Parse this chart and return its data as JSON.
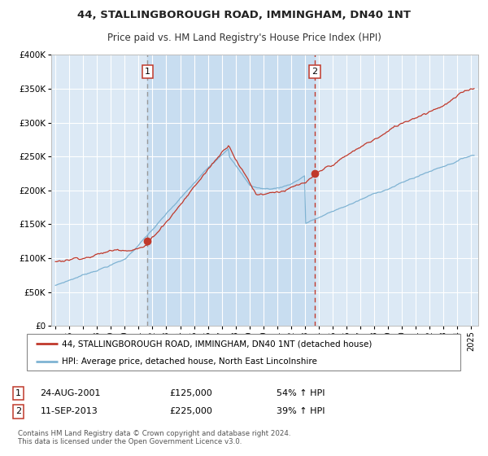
{
  "title1": "44, STALLINGBOROUGH ROAD, IMMINGHAM, DN40 1NT",
  "title2": "Price paid vs. HM Land Registry's House Price Index (HPI)",
  "legend_line1": "44, STALLINGBOROUGH ROAD, IMMINGHAM, DN40 1NT (detached house)",
  "legend_line2": "HPI: Average price, detached house, North East Lincolnshire",
  "annotation1_date": "24-AUG-2001",
  "annotation1_price": "£125,000",
  "annotation1_hpi": "54% ↑ HPI",
  "annotation2_date": "11-SEP-2013",
  "annotation2_price": "£225,000",
  "annotation2_hpi": "39% ↑ HPI",
  "footnote": "Contains HM Land Registry data © Crown copyright and database right 2024.\nThis data is licensed under the Open Government Licence v3.0.",
  "fig_bg_color": "#ffffff",
  "plot_bg_color": "#dce9f5",
  "shade_bg_color": "#c8ddf0",
  "grid_color": "#ffffff",
  "red_line_color": "#c0392b",
  "blue_line_color": "#7fb3d3",
  "vline1_color": "#999999",
  "vline2_color": "#c0392b",
  "ylim": [
    0,
    400000
  ],
  "yticks": [
    0,
    50000,
    100000,
    150000,
    200000,
    250000,
    300000,
    350000,
    400000
  ],
  "ytick_labels": [
    "£0",
    "£50K",
    "£100K",
    "£150K",
    "£200K",
    "£250K",
    "£300K",
    "£350K",
    "£400K"
  ],
  "sale1_x": 2001.65,
  "sale1_y": 125000,
  "sale2_x": 2013.7,
  "sale2_y": 225000,
  "xmin": 1994.7,
  "xmax": 2025.5,
  "xtick_start": 1995,
  "xtick_end": 2025
}
